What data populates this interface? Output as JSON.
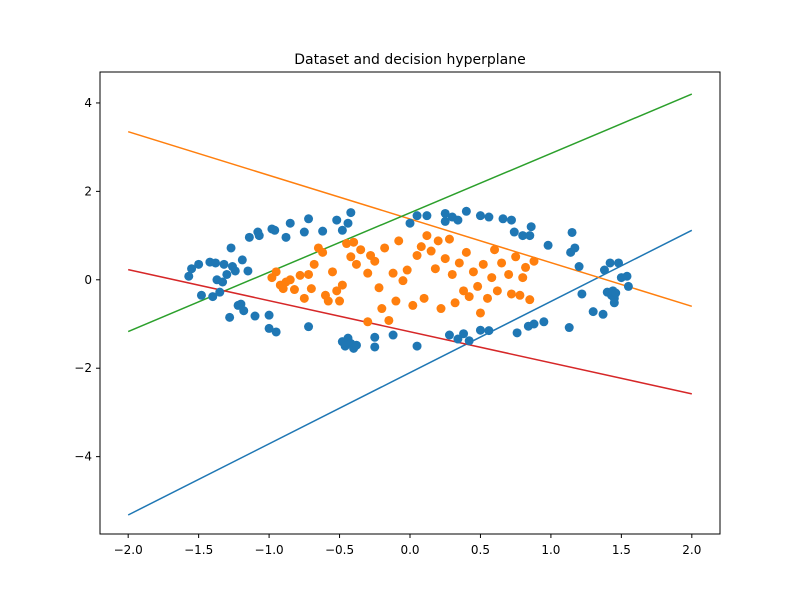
{
  "chart_data": {
    "type": "scatter",
    "title": "Dataset and decision hyperplane",
    "xlabel": "",
    "ylabel": "",
    "xlim": [
      -2.2,
      2.2
    ],
    "ylim": [
      -5.75,
      4.7
    ],
    "xticks": [
      -2.0,
      -1.5,
      -1.0,
      -0.5,
      0.0,
      0.5,
      1.0,
      1.5,
      2.0
    ],
    "xtick_labels": [
      "−2.0",
      "−1.5",
      "−1.0",
      "−0.5",
      "0.0",
      "0.5",
      "1.0",
      "1.5",
      "2.0"
    ],
    "yticks": [
      -4,
      -2,
      0,
      2,
      4
    ],
    "ytick_labels": [
      "−4",
      "−2",
      "0",
      "2",
      "4"
    ],
    "grid": false,
    "colors": {
      "blue": "#1f77b4",
      "orange": "#ff7f0e",
      "green": "#2ca02c",
      "red": "#d62728"
    },
    "scatter_series": [
      {
        "color": "#1f77b4",
        "points": [
          [
            -1.57,
            0.08
          ],
          [
            -1.55,
            0.25
          ],
          [
            -1.5,
            0.35
          ],
          [
            -1.48,
            -0.35
          ],
          [
            -1.42,
            0.4
          ],
          [
            -1.4,
            -0.38
          ],
          [
            -1.38,
            0.38
          ],
          [
            -1.37,
            0.0
          ],
          [
            -1.35,
            -0.28
          ],
          [
            -1.33,
            -0.05
          ],
          [
            -1.32,
            0.35
          ],
          [
            -1.3,
            0.12
          ],
          [
            -1.28,
            -0.85
          ],
          [
            -1.27,
            0.72
          ],
          [
            -1.26,
            0.3
          ],
          [
            -1.24,
            0.2
          ],
          [
            -1.22,
            -0.58
          ],
          [
            -1.2,
            -0.55
          ],
          [
            -1.19,
            0.45
          ],
          [
            -1.18,
            -0.7
          ],
          [
            -1.15,
            0.2
          ],
          [
            -1.14,
            0.96
          ],
          [
            -1.1,
            -0.82
          ],
          [
            -1.08,
            1.08
          ],
          [
            -1.07,
            1.0
          ],
          [
            -1.0,
            -0.8
          ],
          [
            -1.0,
            -1.1
          ],
          [
            -0.98,
            1.15
          ],
          [
            -0.96,
            1.12
          ],
          [
            -0.95,
            -1.18
          ],
          [
            -0.88,
            0.96
          ],
          [
            -0.85,
            1.28
          ],
          [
            -0.75,
            1.08
          ],
          [
            -0.72,
            1.38
          ],
          [
            -0.72,
            -1.06
          ],
          [
            -0.62,
            1.1
          ],
          [
            -0.52,
            1.35
          ],
          [
            -0.48,
            1.12
          ],
          [
            -0.44,
            1.28
          ],
          [
            -0.42,
            1.52
          ],
          [
            -0.48,
            -1.4
          ],
          [
            -0.46,
            -1.5
          ],
          [
            -0.44,
            -1.32
          ],
          [
            -0.42,
            -1.44
          ],
          [
            -0.4,
            -1.55
          ],
          [
            -0.38,
            -1.48
          ],
          [
            -0.25,
            -1.3
          ],
          [
            -0.25,
            -1.52
          ],
          [
            -0.12,
            -1.25
          ],
          [
            0.0,
            1.28
          ],
          [
            0.05,
            1.45
          ],
          [
            0.12,
            1.45
          ],
          [
            0.05,
            -1.5
          ],
          [
            0.25,
            1.32
          ],
          [
            0.25,
            1.5
          ],
          [
            0.3,
            1.42
          ],
          [
            0.34,
            1.35
          ],
          [
            0.4,
            1.55
          ],
          [
            0.28,
            -1.25
          ],
          [
            0.34,
            -1.34
          ],
          [
            0.38,
            -1.22
          ],
          [
            0.42,
            -1.38
          ],
          [
            0.5,
            1.45
          ],
          [
            0.56,
            1.42
          ],
          [
            0.5,
            -1.14
          ],
          [
            0.56,
            -1.15
          ],
          [
            0.66,
            1.38
          ],
          [
            0.72,
            1.35
          ],
          [
            0.74,
            1.08
          ],
          [
            0.8,
            1.0
          ],
          [
            0.86,
            1.2
          ],
          [
            0.85,
            1.0
          ],
          [
            0.76,
            -1.2
          ],
          [
            0.84,
            -1.05
          ],
          [
            0.88,
            -1.0
          ],
          [
            0.95,
            -0.95
          ],
          [
            0.98,
            0.78
          ],
          [
            1.13,
            -1.08
          ],
          [
            1.14,
            0.62
          ],
          [
            1.15,
            1.07
          ],
          [
            1.17,
            0.72
          ],
          [
            1.2,
            0.3
          ],
          [
            1.22,
            -0.32
          ],
          [
            1.3,
            -0.72
          ],
          [
            1.37,
            -0.78
          ],
          [
            1.38,
            0.22
          ],
          [
            1.4,
            -0.28
          ],
          [
            1.42,
            0.38
          ],
          [
            1.43,
            -0.35
          ],
          [
            1.45,
            -0.42
          ],
          [
            1.45,
            -0.52
          ],
          [
            1.44,
            -0.25
          ],
          [
            1.46,
            -0.3
          ],
          [
            1.48,
            0.38
          ],
          [
            1.5,
            0.05
          ],
          [
            1.54,
            0.08
          ],
          [
            1.55,
            -0.15
          ]
        ]
      },
      {
        "color": "#ff7f0e",
        "points": [
          [
            -0.98,
            0.05
          ],
          [
            -0.95,
            0.18
          ],
          [
            -0.92,
            -0.12
          ],
          [
            -0.9,
            -0.2
          ],
          [
            -0.88,
            -0.05
          ],
          [
            -0.85,
            0.0
          ],
          [
            -0.82,
            -0.22
          ],
          [
            -0.78,
            0.1
          ],
          [
            -0.75,
            -0.42
          ],
          [
            -0.72,
            0.12
          ],
          [
            -0.7,
            -0.2
          ],
          [
            -0.68,
            0.35
          ],
          [
            -0.65,
            0.72
          ],
          [
            -0.62,
            0.62
          ],
          [
            -0.6,
            -0.35
          ],
          [
            -0.58,
            -0.48
          ],
          [
            -0.55,
            0.18
          ],
          [
            -0.52,
            -0.25
          ],
          [
            -0.5,
            -0.48
          ],
          [
            -0.48,
            -0.12
          ],
          [
            -0.45,
            0.82
          ],
          [
            -0.42,
            0.52
          ],
          [
            -0.4,
            0.85
          ],
          [
            -0.38,
            0.35
          ],
          [
            -0.35,
            0.68
          ],
          [
            -0.3,
            0.15
          ],
          [
            -0.3,
            -0.95
          ],
          [
            -0.28,
            0.55
          ],
          [
            -0.25,
            0.42
          ],
          [
            -0.22,
            -0.18
          ],
          [
            -0.2,
            -0.65
          ],
          [
            -0.18,
            0.72
          ],
          [
            -0.15,
            -0.92
          ],
          [
            -0.12,
            0.15
          ],
          [
            -0.1,
            -0.48
          ],
          [
            -0.08,
            0.88
          ],
          [
            -0.05,
            -0.02
          ],
          [
            -0.02,
            0.22
          ],
          [
            0.02,
            -0.58
          ],
          [
            0.05,
            0.55
          ],
          [
            0.08,
            0.75
          ],
          [
            0.1,
            -0.42
          ],
          [
            0.12,
            1.0
          ],
          [
            0.15,
            0.65
          ],
          [
            0.18,
            0.25
          ],
          [
            0.2,
            0.88
          ],
          [
            0.22,
            -0.65
          ],
          [
            0.25,
            0.48
          ],
          [
            0.28,
            0.92
          ],
          [
            0.3,
            0.12
          ],
          [
            0.32,
            -0.52
          ],
          [
            0.35,
            0.38
          ],
          [
            0.38,
            -0.25
          ],
          [
            0.4,
            0.62
          ],
          [
            0.42,
            -0.38
          ],
          [
            0.45,
            0.18
          ],
          [
            0.48,
            -0.15
          ],
          [
            0.5,
            -0.75
          ],
          [
            0.52,
            0.35
          ],
          [
            0.55,
            -0.42
          ],
          [
            0.58,
            0.05
          ],
          [
            0.6,
            0.68
          ],
          [
            0.62,
            -0.25
          ],
          [
            0.65,
            0.38
          ],
          [
            0.7,
            0.12
          ],
          [
            0.72,
            -0.32
          ],
          [
            0.75,
            0.52
          ],
          [
            0.78,
            -0.35
          ],
          [
            0.8,
            0.05
          ],
          [
            0.82,
            0.28
          ],
          [
            0.85,
            -0.45
          ],
          [
            0.88,
            0.42
          ]
        ]
      }
    ],
    "lines": [
      {
        "color": "#1f77b4",
        "x": [
          -2.0,
          2.0
        ],
        "y": [
          -5.32,
          1.12
        ]
      },
      {
        "color": "#ff7f0e",
        "x": [
          -2.0,
          2.0
        ],
        "y": [
          3.35,
          -0.6
        ]
      },
      {
        "color": "#2ca02c",
        "x": [
          -2.0,
          2.0
        ],
        "y": [
          -1.17,
          4.2
        ]
      },
      {
        "color": "#d62728",
        "x": [
          -2.0,
          2.0
        ],
        "y": [
          0.23,
          -2.58
        ]
      }
    ]
  }
}
